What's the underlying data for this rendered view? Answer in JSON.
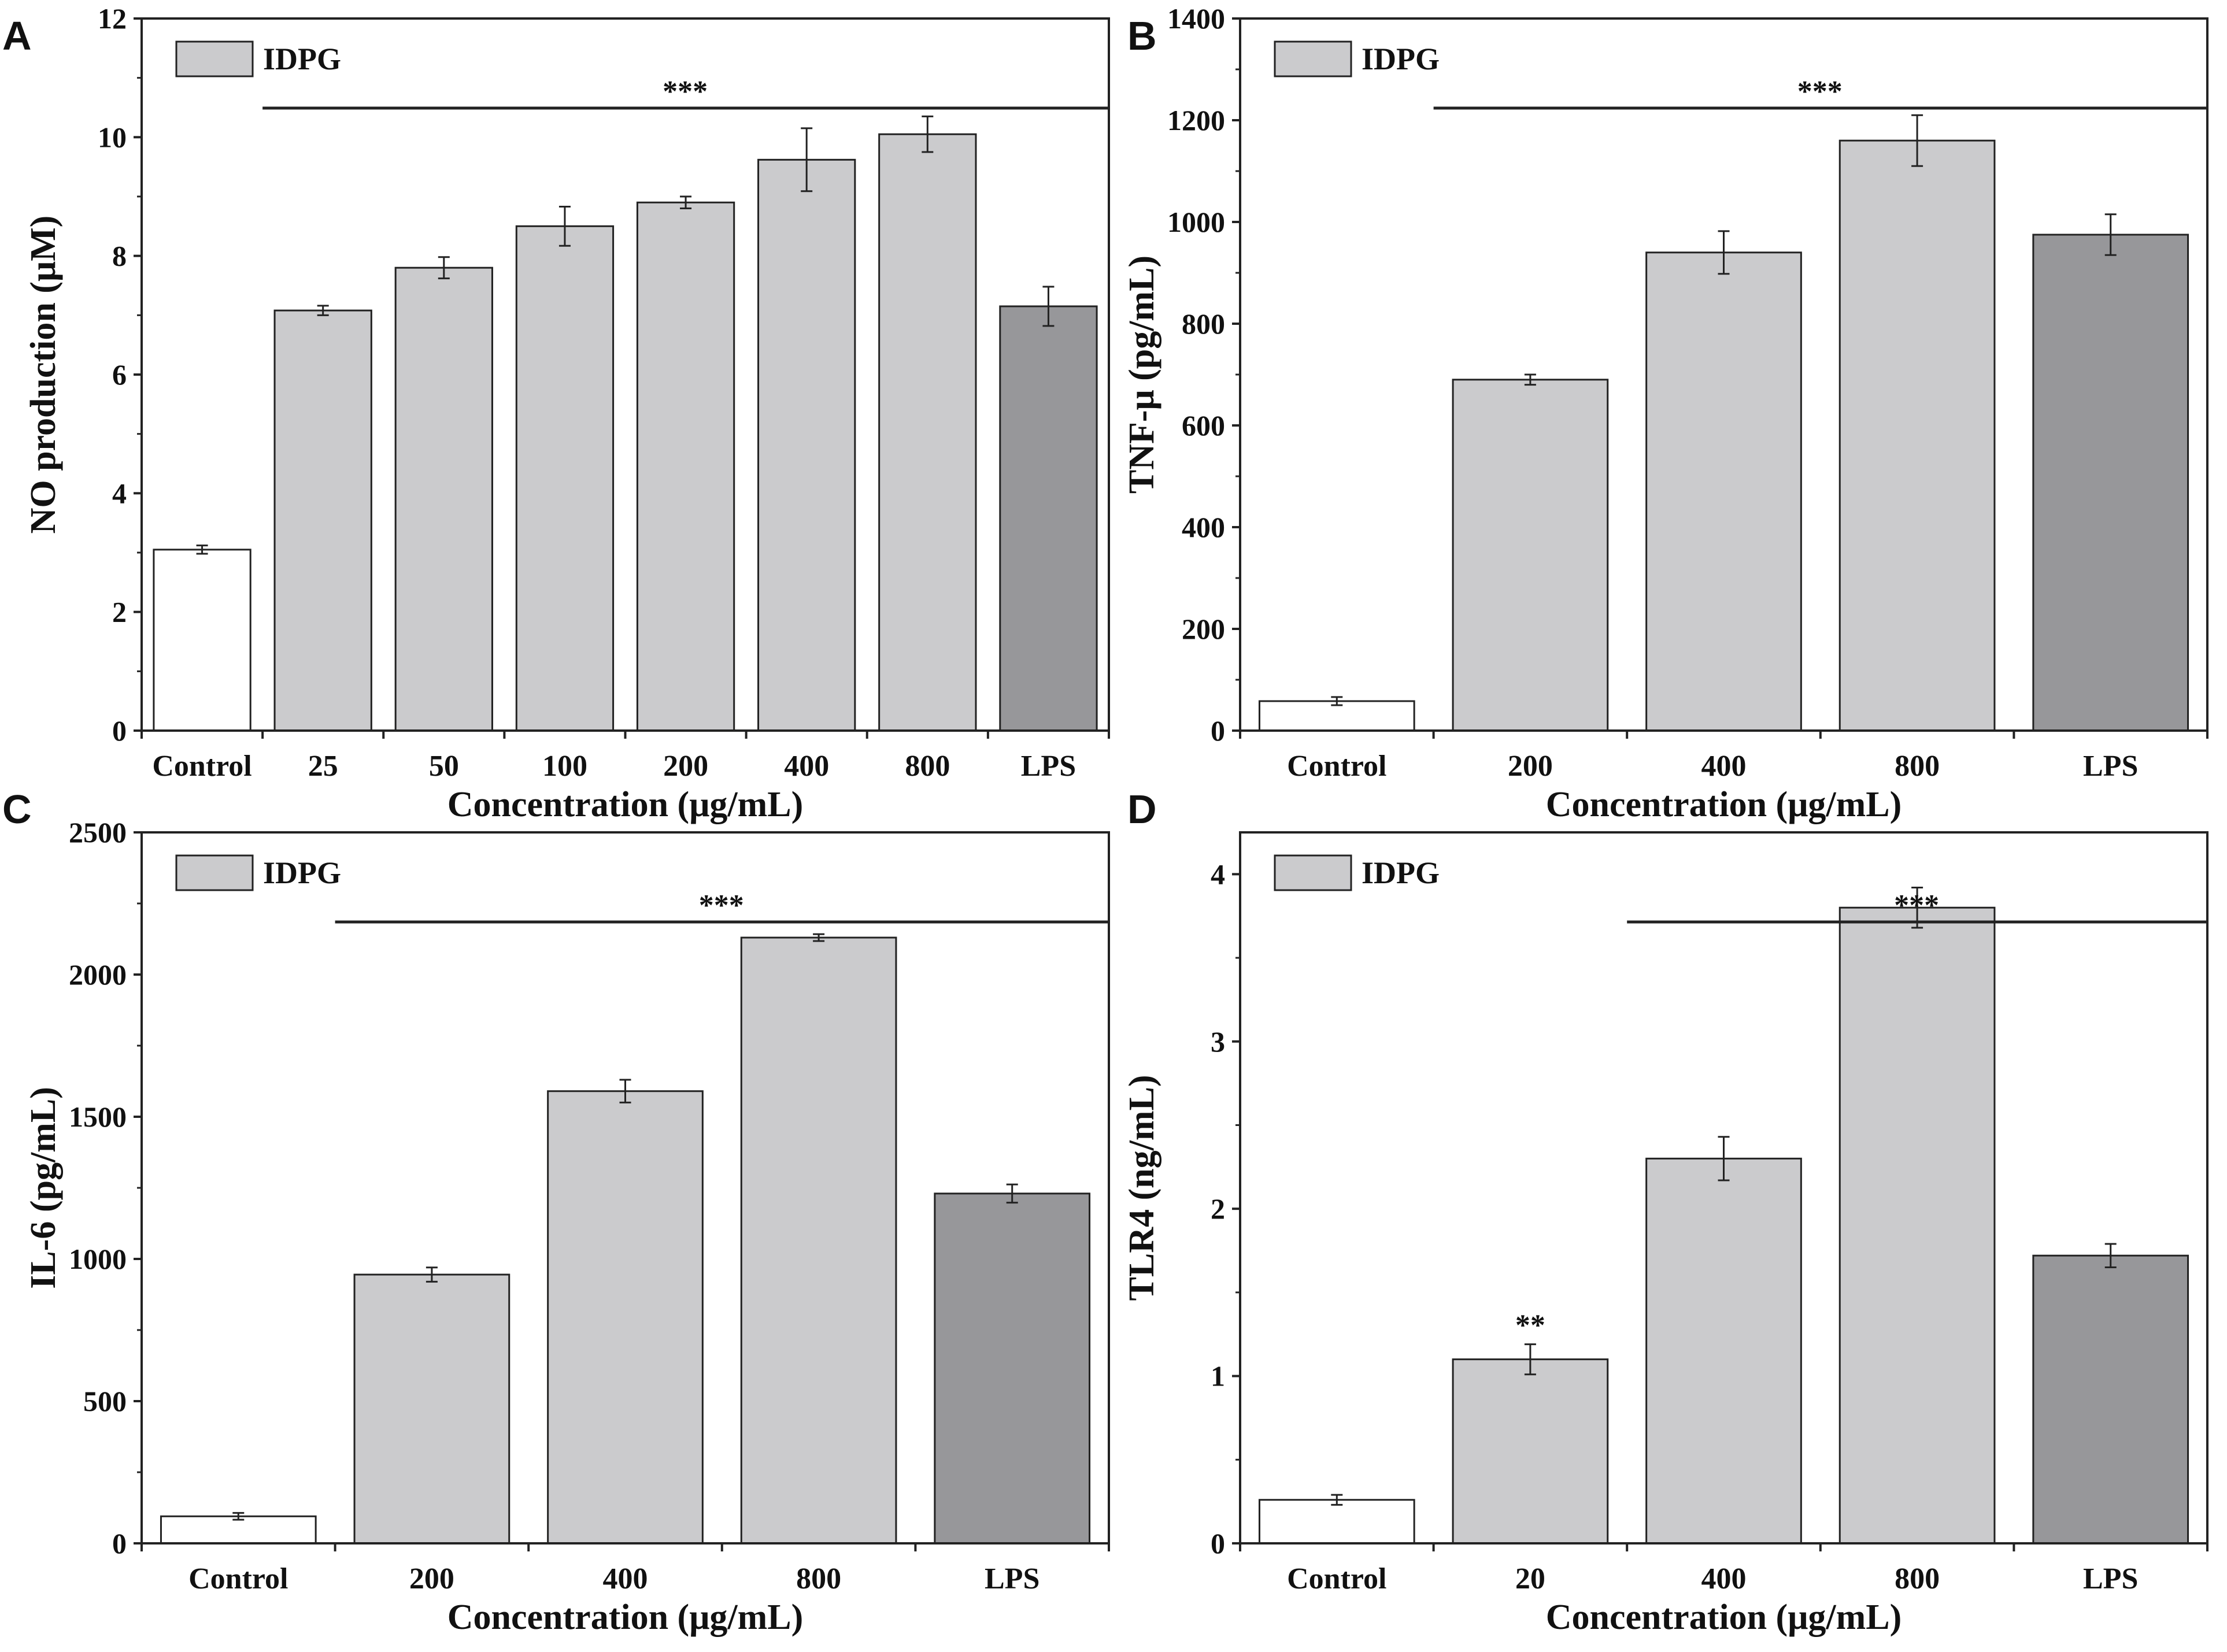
{
  "chart_data": [
    {
      "panel": "A",
      "type": "bar",
      "title": "",
      "xlabel": "Concentration (μg/mL)",
      "ylabel": "NO production (μM)",
      "ylim": [
        0,
        12
      ],
      "yticks": [
        0,
        2,
        4,
        6,
        8,
        10,
        12
      ],
      "categories": [
        "Control",
        "25",
        "50",
        "100",
        "200",
        "400",
        "800",
        "LPS"
      ],
      "values": [
        3.05,
        7.08,
        7.8,
        8.5,
        8.9,
        9.62,
        10.05,
        7.15
      ],
      "errors": [
        0.07,
        0.08,
        0.18,
        0.33,
        0.1,
        0.53,
        0.3,
        0.33
      ],
      "fills": [
        "#ffffff",
        "#cbcbcd",
        "#cbcbcd",
        "#cbcbcd",
        "#cbcbcd",
        "#cbcbcd",
        "#cbcbcd",
        "#97979a"
      ],
      "legend": "IDPG",
      "significance": [
        {
          "label": "***",
          "from": 1,
          "to": 7
        }
      ],
      "bar_labels": []
    },
    {
      "panel": "B",
      "type": "bar",
      "title": "",
      "xlabel": "Concentration (μg/mL)",
      "ylabel": "TNF-μ  (pg/mL)",
      "ylim": [
        0,
        1400
      ],
      "yticks": [
        0,
        200,
        400,
        600,
        800,
        1000,
        1200,
        1400
      ],
      "categories": [
        "Control",
        "200",
        "400",
        "800",
        "LPS"
      ],
      "values": [
        58,
        690,
        940,
        1160,
        975
      ],
      "errors": [
        8,
        10,
        42,
        50,
        40
      ],
      "fills": [
        "#ffffff",
        "#cbcbcd",
        "#cbcbcd",
        "#cbcbcd",
        "#97979a"
      ],
      "legend": "IDPG",
      "significance": [
        {
          "label": "***",
          "from": 1,
          "to": 4
        }
      ],
      "bar_labels": []
    },
    {
      "panel": "C",
      "type": "bar",
      "title": "",
      "xlabel": "Concentration (μg/mL)",
      "ylabel": "IL-6 (pg/mL)",
      "ylim": [
        0,
        2500
      ],
      "yticks": [
        0,
        500,
        1000,
        1500,
        2000,
        2500
      ],
      "categories": [
        "Control",
        "200",
        "400",
        "800",
        "LPS"
      ],
      "values": [
        95,
        945,
        1590,
        2130,
        1230
      ],
      "errors": [
        12,
        25,
        40,
        12,
        32
      ],
      "fills": [
        "#ffffff",
        "#cbcbcd",
        "#cbcbcd",
        "#cbcbcd",
        "#97979a"
      ],
      "legend": "IDPG",
      "significance": [
        {
          "label": "***",
          "from": 1,
          "to": 4
        }
      ],
      "bar_labels": []
    },
    {
      "panel": "D",
      "type": "bar",
      "title": "",
      "xlabel": "Concentration (μg/mL)",
      "ylabel": "TLR4 (ng/mL)",
      "ylim": [
        0,
        4.25
      ],
      "yticks": [
        0,
        1,
        2,
        3,
        4
      ],
      "categories": [
        "Control",
        "20",
        "400",
        "800",
        "LPS"
      ],
      "values": [
        0.26,
        1.1,
        2.3,
        3.8,
        1.72
      ],
      "errors": [
        0.03,
        0.09,
        0.13,
        0.12,
        0.07
      ],
      "fills": [
        "#ffffff",
        "#cbcbcd",
        "#cbcbcd",
        "#cbcbcd",
        "#97979a"
      ],
      "legend": "IDPG",
      "significance": [
        {
          "label": "***",
          "from": 2,
          "to": 4
        }
      ],
      "bar_labels": [
        {
          "index": 1,
          "label": "**"
        }
      ]
    }
  ]
}
